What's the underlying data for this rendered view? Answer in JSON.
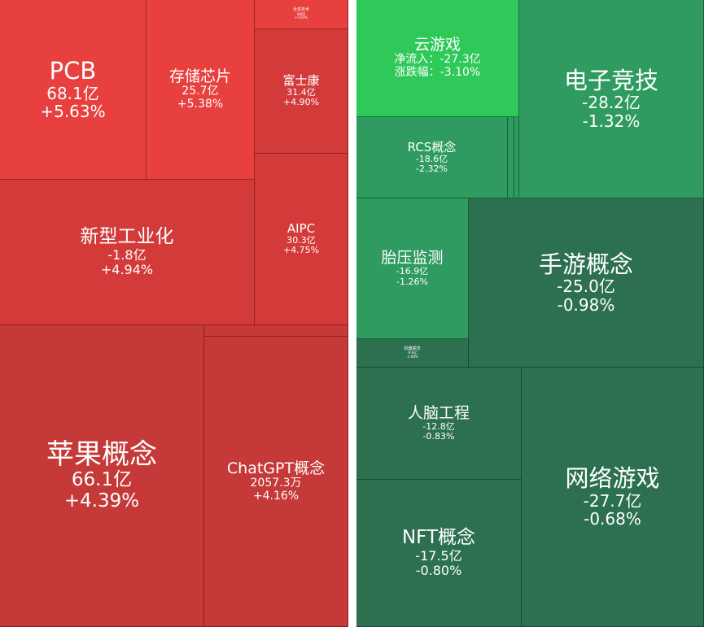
{
  "colors": {
    "up_bright": "#e8403f",
    "up_mid": "#d33b3b",
    "up_dark": "#c53939",
    "down_bright": "#2fc95a",
    "down_mid": "#2f9b60",
    "down_dark": "#2c7050",
    "divider": "#ffffff"
  },
  "gainers": [
    {
      "name": "PCB",
      "flow": "68.1亿",
      "change": "+5.63%"
    },
    {
      "name": "存储芯片",
      "flow": "25.7亿",
      "change": "+5.38%"
    },
    {
      "name": "全息技术",
      "flow": "9000",
      "change": "+4.93%"
    },
    {
      "name": "富士康",
      "flow": "31.4亿",
      "change": "+4.90%"
    },
    {
      "name": "新型工业化",
      "flow": "-1.8亿",
      "change": "+4.94%"
    },
    {
      "name": "AIPC",
      "flow": "30.3亿",
      "change": "+4.75%"
    },
    {
      "name": "苹果概念",
      "flow": "66.1亿",
      "change": "+4.39%"
    },
    {
      "name": "ChatGPT概念",
      "flow": "2057.3万",
      "change": "+4.16%"
    }
  ],
  "losers": [
    {
      "name": "云游戏",
      "flow": "净流入：-27.3亿",
      "change": "涨跌幅：-3.10%"
    },
    {
      "name": "电子竞技",
      "flow": "-28.2亿",
      "change": "-1.32%"
    },
    {
      "name": "RCS概念",
      "flow": "-18.6亿",
      "change": "-2.32%"
    },
    {
      "name": "胎压监测",
      "flow": "-16.9亿",
      "change": "-1.26%"
    },
    {
      "name": "手游概念",
      "flow": "-25.0亿",
      "change": "-0.98%"
    },
    {
      "name": "机器视觉",
      "flow": "-9.6亿",
      "change": "-1.08%"
    },
    {
      "name": "人脑工程",
      "flow": "-12.8亿",
      "change": "-0.83%"
    },
    {
      "name": "网络游戏",
      "flow": "-27.7亿",
      "change": "-0.68%"
    },
    {
      "name": "NFT概念",
      "flow": "-17.5亿",
      "change": "-0.80%"
    }
  ]
}
